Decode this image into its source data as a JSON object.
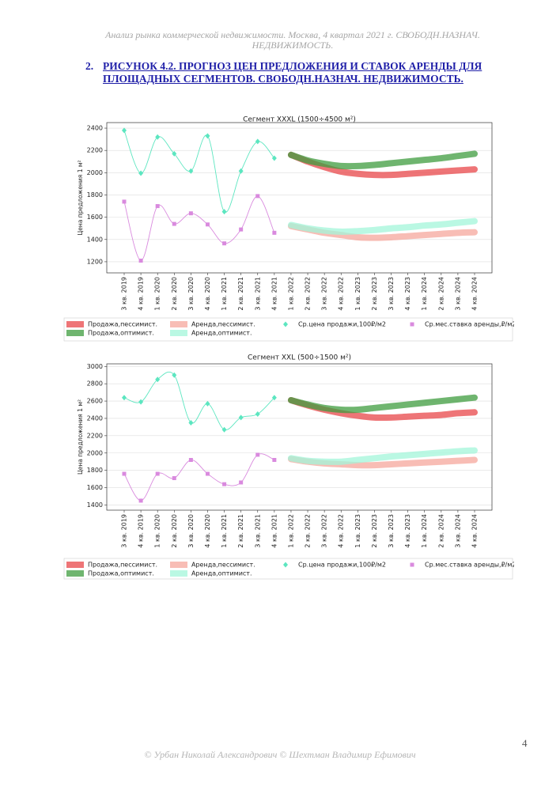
{
  "header": "Анализ рынка коммерческой недвижимости.  Москва,  4 квартал 2021 г.  СВОБОДН.НАЗНАЧ. НЕДВИЖИМОСТЬ.",
  "heading": {
    "number": "2.",
    "text": "РИСУНОК 4.2. ПРОГНОЗ ЦЕН ПРЕДЛОЖЕНИЯ И СТАВОК АРЕНДЫ ДЛЯ ПЛОЩАДНЫХ СЕГМЕНТОВ.  СВОБОДН.НАЗНАЧ. НЕДВИЖИМОСТЬ."
  },
  "chart_data": [
    {
      "type": "line",
      "title": "Сегмент XXXL (1500÷4500 м²)",
      "y_label": "Цена предложения 1 м²",
      "categories": [
        "3 кв. 2019",
        "4 кв. 2019",
        "1 кв. 2020",
        "2 кв. 2020",
        "3 кв. 2020",
        "4 кв. 2020",
        "1 кв. 2021",
        "2 кв. 2021",
        "3 кв. 2021",
        "4 кв. 2021",
        "1 кв. 2022",
        "2 кв. 2022",
        "3 кв. 2022",
        "4 кв. 2022",
        "1 кв. 2023",
        "2 кв. 2023",
        "3 кв. 2023",
        "4 кв. 2023",
        "1 кв. 2024",
        "2 кв. 2024",
        "3 кв. 2024",
        "4 кв. 2024"
      ],
      "ylim": [
        1100,
        2450
      ],
      "yticks": [
        1200,
        1400,
        1600,
        1800,
        2000,
        2200,
        2400
      ],
      "grid": true,
      "series": [
        {
          "name": "Продажа,пессимист.",
          "color": "#e8474a",
          "style": "band",
          "values": [
            null,
            null,
            null,
            null,
            null,
            null,
            null,
            null,
            null,
            null,
            2160,
            2100,
            2050,
            2010,
            1990,
            1980,
            1980,
            1990,
            2000,
            2010,
            2020,
            2030
          ]
        },
        {
          "name": "Аренда,пессимист.",
          "color": "#f6a79c",
          "style": "band",
          "values": [
            null,
            null,
            null,
            null,
            null,
            null,
            null,
            null,
            null,
            null,
            1520,
            1490,
            1460,
            1440,
            1420,
            1415,
            1420,
            1430,
            1440,
            1450,
            1460,
            1465
          ]
        },
        {
          "name": "Ср.цена продажи,100₽/м2",
          "color": "#5ce6c0",
          "style": "curve",
          "marker": "diamond",
          "values": [
            2380,
            1995,
            2320,
            2170,
            2015,
            2330,
            1650,
            2015,
            2280,
            2130,
            null,
            null,
            null,
            null,
            null,
            null,
            null,
            null,
            null,
            null,
            null,
            null
          ]
        },
        {
          "name": "Ср.мес.ставка аренды,₽/м2",
          "color": "#d98ade",
          "style": "curve",
          "marker": "square",
          "values": [
            1740,
            1210,
            1700,
            1540,
            1635,
            1535,
            1365,
            1490,
            1790,
            1460,
            null,
            null,
            null,
            null,
            null,
            null,
            null,
            null,
            null,
            null,
            null,
            null
          ]
        },
        {
          "name": "Продажа,оптимист.",
          "color": "#3f9c3f",
          "style": "band",
          "values": [
            null,
            null,
            null,
            null,
            null,
            null,
            null,
            null,
            null,
            null,
            2160,
            2110,
            2080,
            2060,
            2060,
            2070,
            2085,
            2100,
            2115,
            2130,
            2150,
            2170
          ]
        },
        {
          "name": "Аренда,оптимист.",
          "color": "#a3f5da",
          "style": "band",
          "values": [
            null,
            null,
            null,
            null,
            null,
            null,
            null,
            null,
            null,
            null,
            1530,
            1500,
            1480,
            1470,
            1475,
            1485,
            1500,
            1510,
            1525,
            1535,
            1550,
            1565
          ]
        }
      ]
    },
    {
      "type": "line",
      "title": "Сегмент XXL (500÷1500 м²)",
      "y_label": "Цена предложения 1 м²",
      "categories": [
        "3 кв. 2019",
        "4 кв. 2019",
        "1 кв. 2020",
        "2 кв. 2020",
        "3 кв. 2020",
        "4 кв. 2020",
        "1 кв. 2021",
        "2 кв. 2021",
        "3 кв. 2021",
        "4 кв. 2021",
        "1 кв. 2022",
        "2 кв. 2022",
        "3 кв. 2022",
        "4 кв. 2022",
        "1 кв. 2023",
        "2 кв. 2023",
        "3 кв. 2023",
        "4 кв. 2023",
        "1 кв. 2024",
        "2 кв. 2024",
        "3 кв. 2024",
        "4 кв. 2024"
      ],
      "ylim": [
        1340,
        3030
      ],
      "yticks": [
        1400,
        1600,
        1800,
        2000,
        2200,
        2400,
        2600,
        2800,
        3000
      ],
      "grid": true,
      "series": [
        {
          "name": "Продажа,пессимист.",
          "color": "#e8474a",
          "style": "band",
          "values": [
            null,
            null,
            null,
            null,
            null,
            null,
            null,
            null,
            null,
            null,
            2610,
            2550,
            2500,
            2460,
            2430,
            2410,
            2410,
            2420,
            2430,
            2440,
            2460,
            2470
          ]
        },
        {
          "name": "Аренда,пессимист.",
          "color": "#f6a79c",
          "style": "band",
          "values": [
            null,
            null,
            null,
            null,
            null,
            null,
            null,
            null,
            null,
            null,
            1930,
            1900,
            1880,
            1870,
            1860,
            1860,
            1870,
            1880,
            1890,
            1900,
            1910,
            1920
          ]
        },
        {
          "name": "Ср.цена продажи,100₽/м2",
          "color": "#5ce6c0",
          "style": "curve",
          "marker": "diamond",
          "values": [
            2640,
            2590,
            2850,
            2900,
            2350,
            2570,
            2270,
            2410,
            2450,
            2640,
            null,
            null,
            null,
            null,
            null,
            null,
            null,
            null,
            null,
            null,
            null,
            null
          ]
        },
        {
          "name": "Ср.мес.ставка аренды,₽/м2",
          "color": "#d98ade",
          "style": "curve",
          "marker": "square",
          "values": [
            1760,
            1450,
            1760,
            1710,
            1920,
            1760,
            1640,
            1660,
            1980,
            1920,
            null,
            null,
            null,
            null,
            null,
            null,
            null,
            null,
            null,
            null,
            null,
            null
          ]
        },
        {
          "name": "Продажа,оптимист.",
          "color": "#3f9c3f",
          "style": "band",
          "values": [
            null,
            null,
            null,
            null,
            null,
            null,
            null,
            null,
            null,
            null,
            2610,
            2560,
            2520,
            2500,
            2500,
            2520,
            2540,
            2560,
            2580,
            2600,
            2620,
            2640
          ]
        },
        {
          "name": "Аренда,оптимист.",
          "color": "#a3f5da",
          "style": "band",
          "values": [
            null,
            null,
            null,
            null,
            null,
            null,
            null,
            null,
            null,
            null,
            1940,
            1910,
            1900,
            1900,
            1920,
            1940,
            1960,
            1975,
            1990,
            2005,
            2020,
            2030
          ]
        }
      ]
    }
  ],
  "footer": "© Урбан Николай Александрович  © Шехтман Владимир Ефимович",
  "page_number": "4"
}
